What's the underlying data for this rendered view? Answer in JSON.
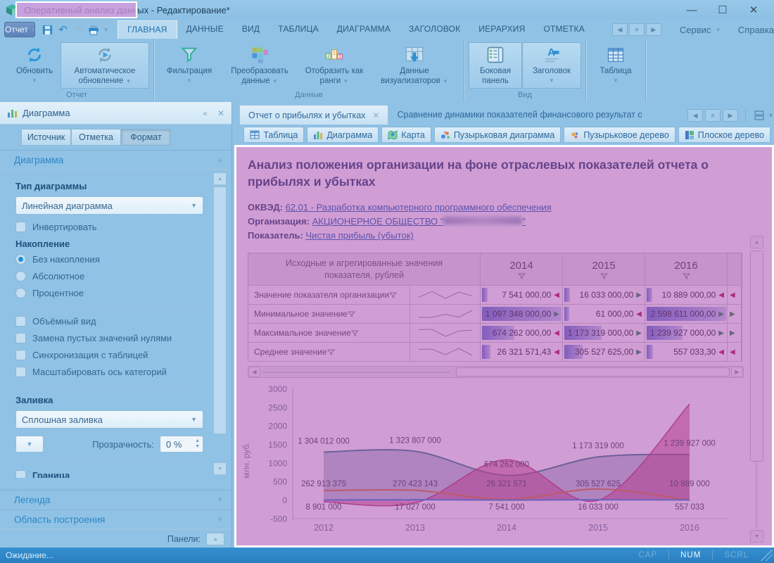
{
  "window": {
    "title_app": "Оперативный анализ данных",
    "title_doc": "- Редактирование*",
    "minimize": "—",
    "maximize": "☐",
    "close": "✕"
  },
  "toolbar": {
    "report": "Отчет",
    "tabs": [
      "ГЛАВНАЯ",
      "ДАННЫЕ",
      "ВИД",
      "ТАБЛИЦА",
      "ДИАГРАММА",
      "ЗАГОЛОВОК",
      "ИЕРАРХИЯ",
      "ОТМЕТКА"
    ],
    "active_tab": "ГЛАВНАЯ",
    "service": "Сервис",
    "help": "Справка"
  },
  "ribbon": {
    "refresh": "Обновить",
    "auto_refresh": "Автоматическое обновление",
    "filter": "Фильтрация",
    "transform": "Преобразовать данные",
    "ranks": "Отобразить как ранги",
    "visualizers": "Данные визуализаторов",
    "side_panel": "Боковая панель",
    "title_btn": "Заголовок",
    "table_btn": "Таблица",
    "group_report": "Отчет",
    "group_data": "Данные",
    "group_view": "Вид"
  },
  "left_panel": {
    "title": "Диаграмма",
    "tab_source": "Источник",
    "tab_mark": "Отметка",
    "tab_format": "Формат",
    "section_chart": "Диаграмма",
    "type_label": "Тип диаграммы",
    "type_value": "Линейная диаграмма",
    "invert": "Инвертировать",
    "accum_label": "Накопление",
    "accum_none": "Без накопления",
    "accum_abs": "Абсолютное",
    "accum_pct": "Процентное",
    "cb_volume": "Объёмный вид",
    "cb_zeros": "Замена пустых значений нулями",
    "cb_sync": "Синхронизация с таблицей",
    "cb_scale": "Масштабировать ось категорий",
    "fill_label": "Заливка",
    "fill_value": "Сплошная заливка",
    "transp_label": "Прозрачность:",
    "transp_value": "0 %",
    "border_label": "Граница",
    "section_legend": "Легенда",
    "section_plot": "Область построения",
    "panels_label": "Панели:"
  },
  "doc_tabs": {
    "tab1": "Отчет о прибылях и убытках",
    "tab2": "Сравнение динамики показателей финансового результат организации и"
  },
  "view_buttons": [
    {
      "label": "Таблица",
      "icon": "table-view-icon"
    },
    {
      "label": "Диаграмма",
      "icon": "chart-view-icon"
    },
    {
      "label": "Карта",
      "icon": "map-view-icon"
    },
    {
      "label": "Пузырьковая диаграмма",
      "icon": "bubble-chart-icon"
    },
    {
      "label": "Пузырьковое дерево",
      "icon": "bubble-tree-icon"
    },
    {
      "label": "Плоское дерево",
      "icon": "flat-tree-icon"
    }
  ],
  "report": {
    "title": "Анализ положения организации на фоне отраслевых показателей отчета о прибылях и убытках",
    "okved_label": "ОКВЭД:",
    "okved_link": "62.01 - Разработка компьютерного программного обеспечения",
    "org_label": "Организация:",
    "org_prefix": "АКЦИОНЕРНОЕ ОБЩЕСТВО \"",
    "org_suffix": "\"",
    "metric_label": "Показатель:",
    "metric_link": "Чистая прибыль (убыток)",
    "table": {
      "header": "Исходные и агрегированные значения показателя, рублей",
      "years": [
        "2014",
        "2015",
        "2016"
      ],
      "rows": [
        {
          "label": "Значение показателя организации",
          "spark_key": "org",
          "values": [
            "7 541 000,00",
            "16 033 000,00",
            "10 889 000,00"
          ],
          "trends": [
            "down",
            "up",
            "down"
          ],
          "bars": [
            7,
            7,
            7
          ],
          "extra_trend": "down"
        },
        {
          "label": "Минимальное значение",
          "spark_key": "min",
          "values": [
            "1 097 348 000,00",
            "61 000,00",
            "2 598 611 000,00"
          ],
          "trends": [
            "up",
            "down",
            "up"
          ],
          "bars": [
            97,
            6,
            97
          ],
          "extra_trend": "up"
        },
        {
          "label": "Максимальное значение",
          "spark_key": "max",
          "values": [
            "674 262 000,00",
            "1 173 319 000,00",
            "1 239 927 000,00"
          ],
          "trends": [
            "down",
            "up",
            "up"
          ],
          "bars": [
            40,
            46,
            44
          ],
          "extra_trend": "up"
        },
        {
          "label": "Среднее значение",
          "spark_key": "avg",
          "values": [
            "26 321 571,43",
            "305 527 625,00",
            "557 033,30"
          ],
          "trends": [
            "down",
            "up",
            "down"
          ],
          "bars": [
            10,
            22,
            8
          ],
          "extra_trend": "down"
        }
      ]
    }
  },
  "chart_data": {
    "type": "area",
    "x": [
      "2012",
      "2013",
      "2014",
      "2015",
      "2016"
    ],
    "ylabel": "млн. руб.",
    "ylim": [
      -500,
      3000
    ],
    "yticks": [
      3000,
      2500,
      2000,
      1500,
      1000,
      500,
      0,
      -500
    ],
    "series": [
      {
        "name": "Максимальное значение",
        "key": "max",
        "values_mln": [
          1304.012,
          1323.807,
          674.262,
          1173.319,
          1239.927
        ]
      },
      {
        "name": "Минимальное значение",
        "key": "min",
        "values_mln": [
          -40,
          -70,
          1097.348,
          0.061,
          2598.611
        ]
      },
      {
        "name": "Среднее значение",
        "key": "avg",
        "values_mln": [
          262.913,
          270.423,
          26.322,
          305.528,
          0.557
        ]
      },
      {
        "name": "Значение показателя организации",
        "key": "org",
        "values_mln": [
          8.901,
          17.027,
          7.541,
          16.033,
          10.889
        ]
      }
    ],
    "point_labels": {
      "top": [
        "1 304 012 000",
        "1 323 807 000",
        "674 262 000",
        "1 173 319 000",
        "1 239 927 000"
      ],
      "middle": [
        "262 913 375",
        "270 423 143",
        "26 321 571",
        "305 527 625",
        "10 889 000"
      ],
      "bottom": [
        "8 901 000",
        "17 027 000",
        "7 541 000",
        "16 033 000",
        "557 033"
      ]
    }
  },
  "status_bar": {
    "left": "Ожидание...",
    "cap": "CAP",
    "num": "NUM",
    "scrl": "SCRL"
  }
}
